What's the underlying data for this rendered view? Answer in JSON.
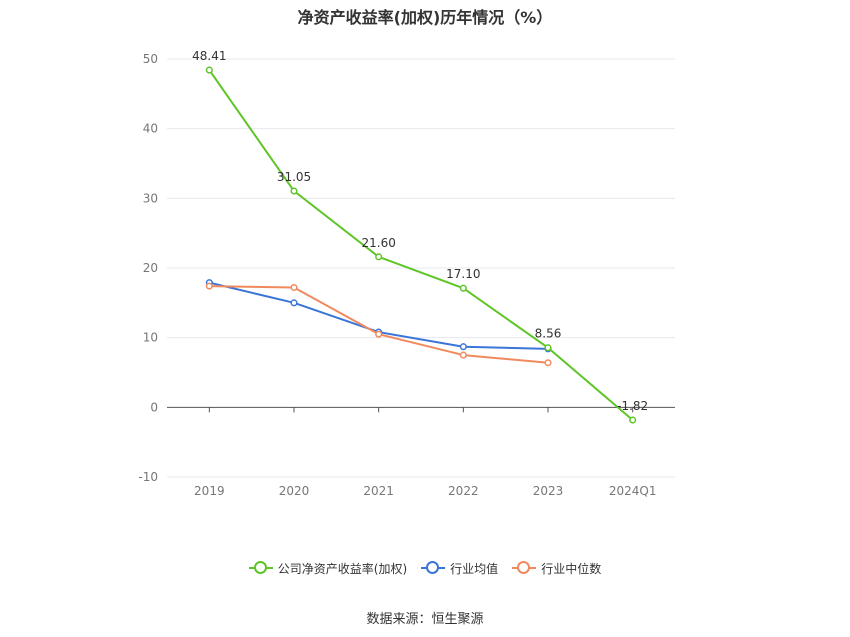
{
  "chart_data": {
    "type": "line",
    "title": "净资产收益率(加权)历年情况（%）",
    "categories": [
      "2019",
      "2020",
      "2021",
      "2022",
      "2023",
      "2024Q1"
    ],
    "y_ticks": [
      "50",
      "40",
      "30",
      "20",
      "10",
      "0",
      "-10"
    ],
    "ylim": [
      -10,
      50
    ],
    "grid": true,
    "legend_position": "bottom-center",
    "series": [
      {
        "name": "公司净资产收益率(加权)",
        "color": "#5ec526",
        "values": [
          48.41,
          31.05,
          21.6,
          17.1,
          8.56,
          -1.82
        ],
        "labels": [
          "48.41",
          "31.05",
          "21.60",
          "17.10",
          "8.56",
          "-1.82"
        ]
      },
      {
        "name": "行业均值",
        "color": "#3a75d8",
        "values": [
          17.9,
          15.0,
          10.8,
          8.7,
          8.4,
          null
        ]
      },
      {
        "name": "行业中位数",
        "color": "#f08a5d",
        "values": [
          17.4,
          17.2,
          10.5,
          7.5,
          6.4,
          null
        ]
      }
    ]
  },
  "source": "数据来源：恒生聚源"
}
